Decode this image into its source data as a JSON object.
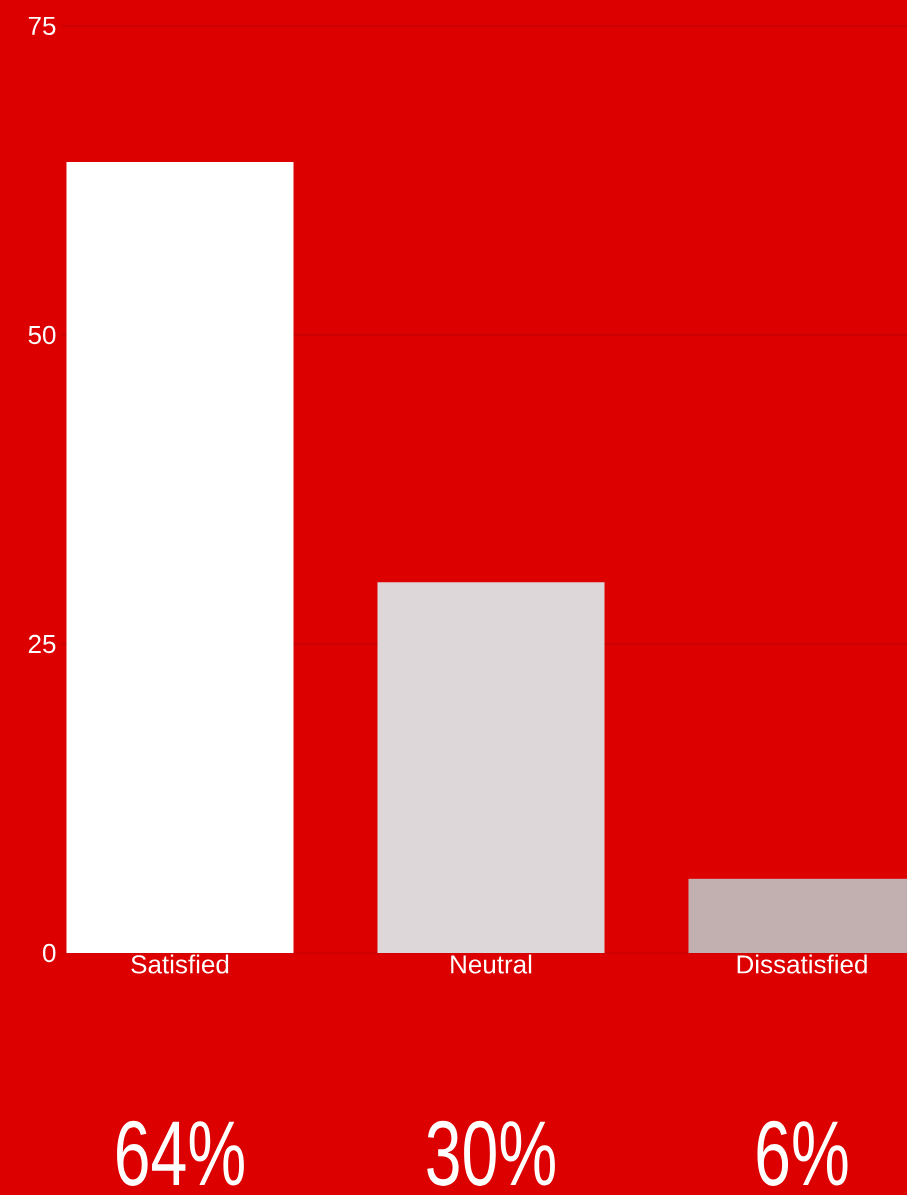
{
  "chart_data": {
    "type": "bar",
    "categories": [
      "Satisfied",
      "Neutral",
      "Dissatisfied"
    ],
    "values": [
      64,
      30,
      6
    ],
    "colors": [
      "#ffffff",
      "#ddd7da",
      "#c2b0b0"
    ],
    "value_labels": [
      "64%",
      "30%",
      "6%"
    ],
    "ylim": [
      0,
      75
    ],
    "yticks": [
      0,
      25,
      50,
      75
    ],
    "grid": "y"
  }
}
